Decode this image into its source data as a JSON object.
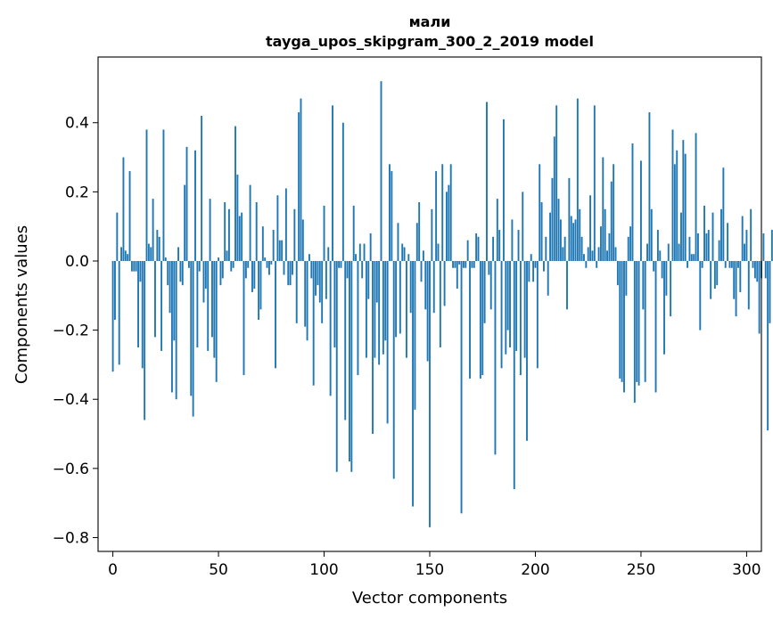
{
  "chart_data": {
    "type": "bar",
    "title": "мали",
    "subtitle": "tayga_upos_skipgram_300_2_2019 model",
    "xlabel": "Vector components",
    "ylabel": "Components values",
    "xlim": [
      -7,
      307
    ],
    "ylim": [
      -0.84,
      0.59
    ],
    "xticks": [
      0,
      50,
      100,
      150,
      200,
      250,
      300
    ],
    "yticks": [
      -0.8,
      -0.6,
      -0.4,
      -0.2,
      0.0,
      0.2,
      0.4
    ],
    "ytick_labels": [
      "−0.8",
      "−0.6",
      "−0.4",
      "−0.2",
      "0.0",
      "0.2",
      "0.4"
    ],
    "xtick_labels": [
      "0",
      "50",
      "100",
      "150",
      "200",
      "250",
      "300"
    ],
    "bar_color": "#1f77b4",
    "grid": false,
    "values": [
      -0.32,
      -0.17,
      0.14,
      -0.3,
      0.04,
      0.3,
      0.03,
      0.02,
      0.26,
      -0.03,
      -0.03,
      -0.03,
      -0.25,
      -0.06,
      -0.31,
      -0.46,
      0.38,
      0.05,
      0.04,
      0.18,
      -0.22,
      0.09,
      0.07,
      -0.26,
      0.38,
      0.01,
      -0.07,
      -0.15,
      -0.38,
      -0.23,
      -0.4,
      0.04,
      -0.06,
      -0.07,
      0.22,
      0.33,
      -0.02,
      -0.39,
      -0.45,
      0.32,
      -0.25,
      -0.03,
      0.42,
      -0.12,
      -0.08,
      -0.26,
      0.18,
      -0.22,
      -0.28,
      -0.35,
      0.01,
      -0.07,
      -0.05,
      0.17,
      0.03,
      0.15,
      -0.03,
      -0.02,
      0.39,
      0.25,
      0.13,
      0.14,
      -0.33,
      -0.05,
      -0.02,
      0.22,
      -0.09,
      -0.08,
      0.17,
      -0.17,
      -0.14,
      0.1,
      0.01,
      -0.02,
      -0.04,
      -0.01,
      0.09,
      -0.31,
      0.19,
      0.06,
      0.06,
      -0.04,
      0.21,
      -0.07,
      -0.07,
      -0.04,
      0.15,
      -0.18,
      0.43,
      0.47,
      0.12,
      -0.19,
      -0.23,
      0.02,
      -0.05,
      -0.36,
      -0.1,
      -0.07,
      -0.12,
      -0.18,
      0.16,
      -0.11,
      0.04,
      -0.39,
      0.45,
      -0.25,
      -0.61,
      -0.02,
      -0.02,
      0.4,
      -0.46,
      -0.05,
      -0.58,
      -0.61,
      0.16,
      0.02,
      -0.33,
      0.05,
      -0.05,
      0.05,
      -0.28,
      -0.11,
      0.08,
      -0.5,
      -0.28,
      -0.12,
      -0.3,
      0.52,
      -0.27,
      -0.23,
      -0.47,
      0.28,
      0.26,
      -0.63,
      -0.22,
      0.11,
      -0.21,
      0.05,
      0.04,
      -0.28,
      0.02,
      -0.15,
      -0.71,
      -0.43,
      0.11,
      0.17,
      -0.06,
      0.03,
      -0.14,
      -0.29,
      -0.77,
      0.15,
      -0.15,
      0.26,
      0.05,
      -0.25,
      0.28,
      -0.13,
      0.2,
      0.22,
      0.28,
      -0.02,
      -0.02,
      -0.08,
      -0.01,
      -0.73,
      -0.02,
      -0.02,
      0.06,
      -0.34,
      -0.02,
      -0.02,
      0.08,
      0.07,
      -0.34,
      -0.33,
      -0.18,
      0.46,
      -0.04,
      -0.14,
      0.07,
      -0.56,
      0.18,
      0.09,
      -0.31,
      0.41,
      -0.27,
      -0.2,
      -0.25,
      0.12,
      -0.66,
      -0.26,
      0.09,
      -0.33,
      0.2,
      -0.28,
      -0.52,
      -0.06,
      0.02,
      -0.06,
      -0.02,
      -0.31,
      0.28,
      0.17,
      -0.03,
      0.07,
      -0.1,
      0.14,
      0.24,
      0.36,
      0.45,
      0.18,
      0.12,
      0.04,
      0.07,
      -0.14,
      0.24,
      0.13,
      0.11,
      0.12,
      0.47,
      0.15,
      0.07,
      0.02,
      -0.02,
      0.04,
      0.19,
      0.03,
      0.45,
      -0.02,
      0.04,
      0.1,
      0.3,
      0.15,
      0.03,
      0.08,
      0.23,
      0.28,
      0.04,
      -0.07,
      -0.34,
      -0.35,
      -0.38,
      -0.1,
      0.07,
      0.1,
      0.34,
      -0.41,
      -0.35,
      -0.36,
      0.29,
      -0.14,
      -0.35,
      0.05,
      0.43,
      0.15,
      -0.03,
      -0.38,
      0.09,
      0.03,
      -0.05,
      -0.27,
      -0.1,
      0.05,
      -0.16,
      0.38,
      0.28,
      0.32,
      0.05,
      0.14,
      0.35,
      0.31,
      -0.02,
      0.07,
      0.02,
      0.02,
      0.37,
      0.08,
      -0.2,
      -0.02,
      0.16,
      0.08,
      0.09,
      -0.11,
      0.14,
      -0.08,
      -0.07,
      0.06,
      0.15,
      0.27,
      -0.02,
      0.11,
      -0.02,
      -0.02,
      -0.11,
      -0.16,
      -0.02,
      -0.09,
      0.13,
      0.05,
      0.09,
      -0.14,
      0.15,
      -0.02,
      -0.05,
      -0.06,
      -0.21,
      -0.05,
      0.08,
      -0.05,
      -0.49,
      -0.18,
      0.09,
      0.08,
      -0.11
    ]
  }
}
